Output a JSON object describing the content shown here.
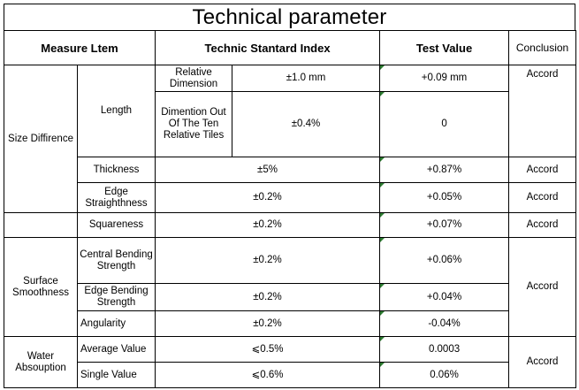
{
  "title": "Technical  parameter",
  "headers": {
    "measure_item": "Measure Ltem",
    "standard_index": "Technic Stantard Index",
    "test_value": "Test Value",
    "conclusion": "Conclusion"
  },
  "groups": {
    "size": "Size Diffirence",
    "surface": "Surface Smoothness",
    "water": "Water Absouption"
  },
  "rows": {
    "length": "Length",
    "relative_dimension": "Relative Dimension",
    "relative_dimension_index": "±1.0 mm",
    "relative_dimension_value": "+0.09 mm",
    "dimension_out": "Dimention Out Of The Ten Relative Tiles",
    "dimension_out_index": "±0.4%",
    "dimension_out_value": "0",
    "length_conclusion": "Accord",
    "thickness": "Thickness",
    "thickness_index": "±5%",
    "thickness_value": "+0.87%",
    "thickness_conclusion": "Accord",
    "edge_straightness": "Edge Straighthness",
    "edge_straightness_index": "±0.2%",
    "edge_straightness_value": "+0.05%",
    "edge_straightness_conclusion": "Accord",
    "squareness": "Squareness",
    "squareness_index": "±0.2%",
    "squareness_value": "+0.07%",
    "squareness_conclusion": "Accord",
    "central_bending": "Central Bending Strength",
    "central_bending_index": "±0.2%",
    "central_bending_value": "+0.06%",
    "edge_bending": "Edge Bending Strength",
    "edge_bending_index": "±0.2%",
    "edge_bending_value": "+0.04%",
    "angularity": "Angularity",
    "angularity_index": "±0.2%",
    "angularity_value": "-0.04%",
    "surface_conclusion": "Accord",
    "average_value": "Average Value",
    "average_index": "⩽0.5%",
    "average_result": "0.0003",
    "single_value": "Single Value",
    "single_index": "⩽0.6%",
    "single_result": "0.06%",
    "water_conclusion": "Accord"
  }
}
